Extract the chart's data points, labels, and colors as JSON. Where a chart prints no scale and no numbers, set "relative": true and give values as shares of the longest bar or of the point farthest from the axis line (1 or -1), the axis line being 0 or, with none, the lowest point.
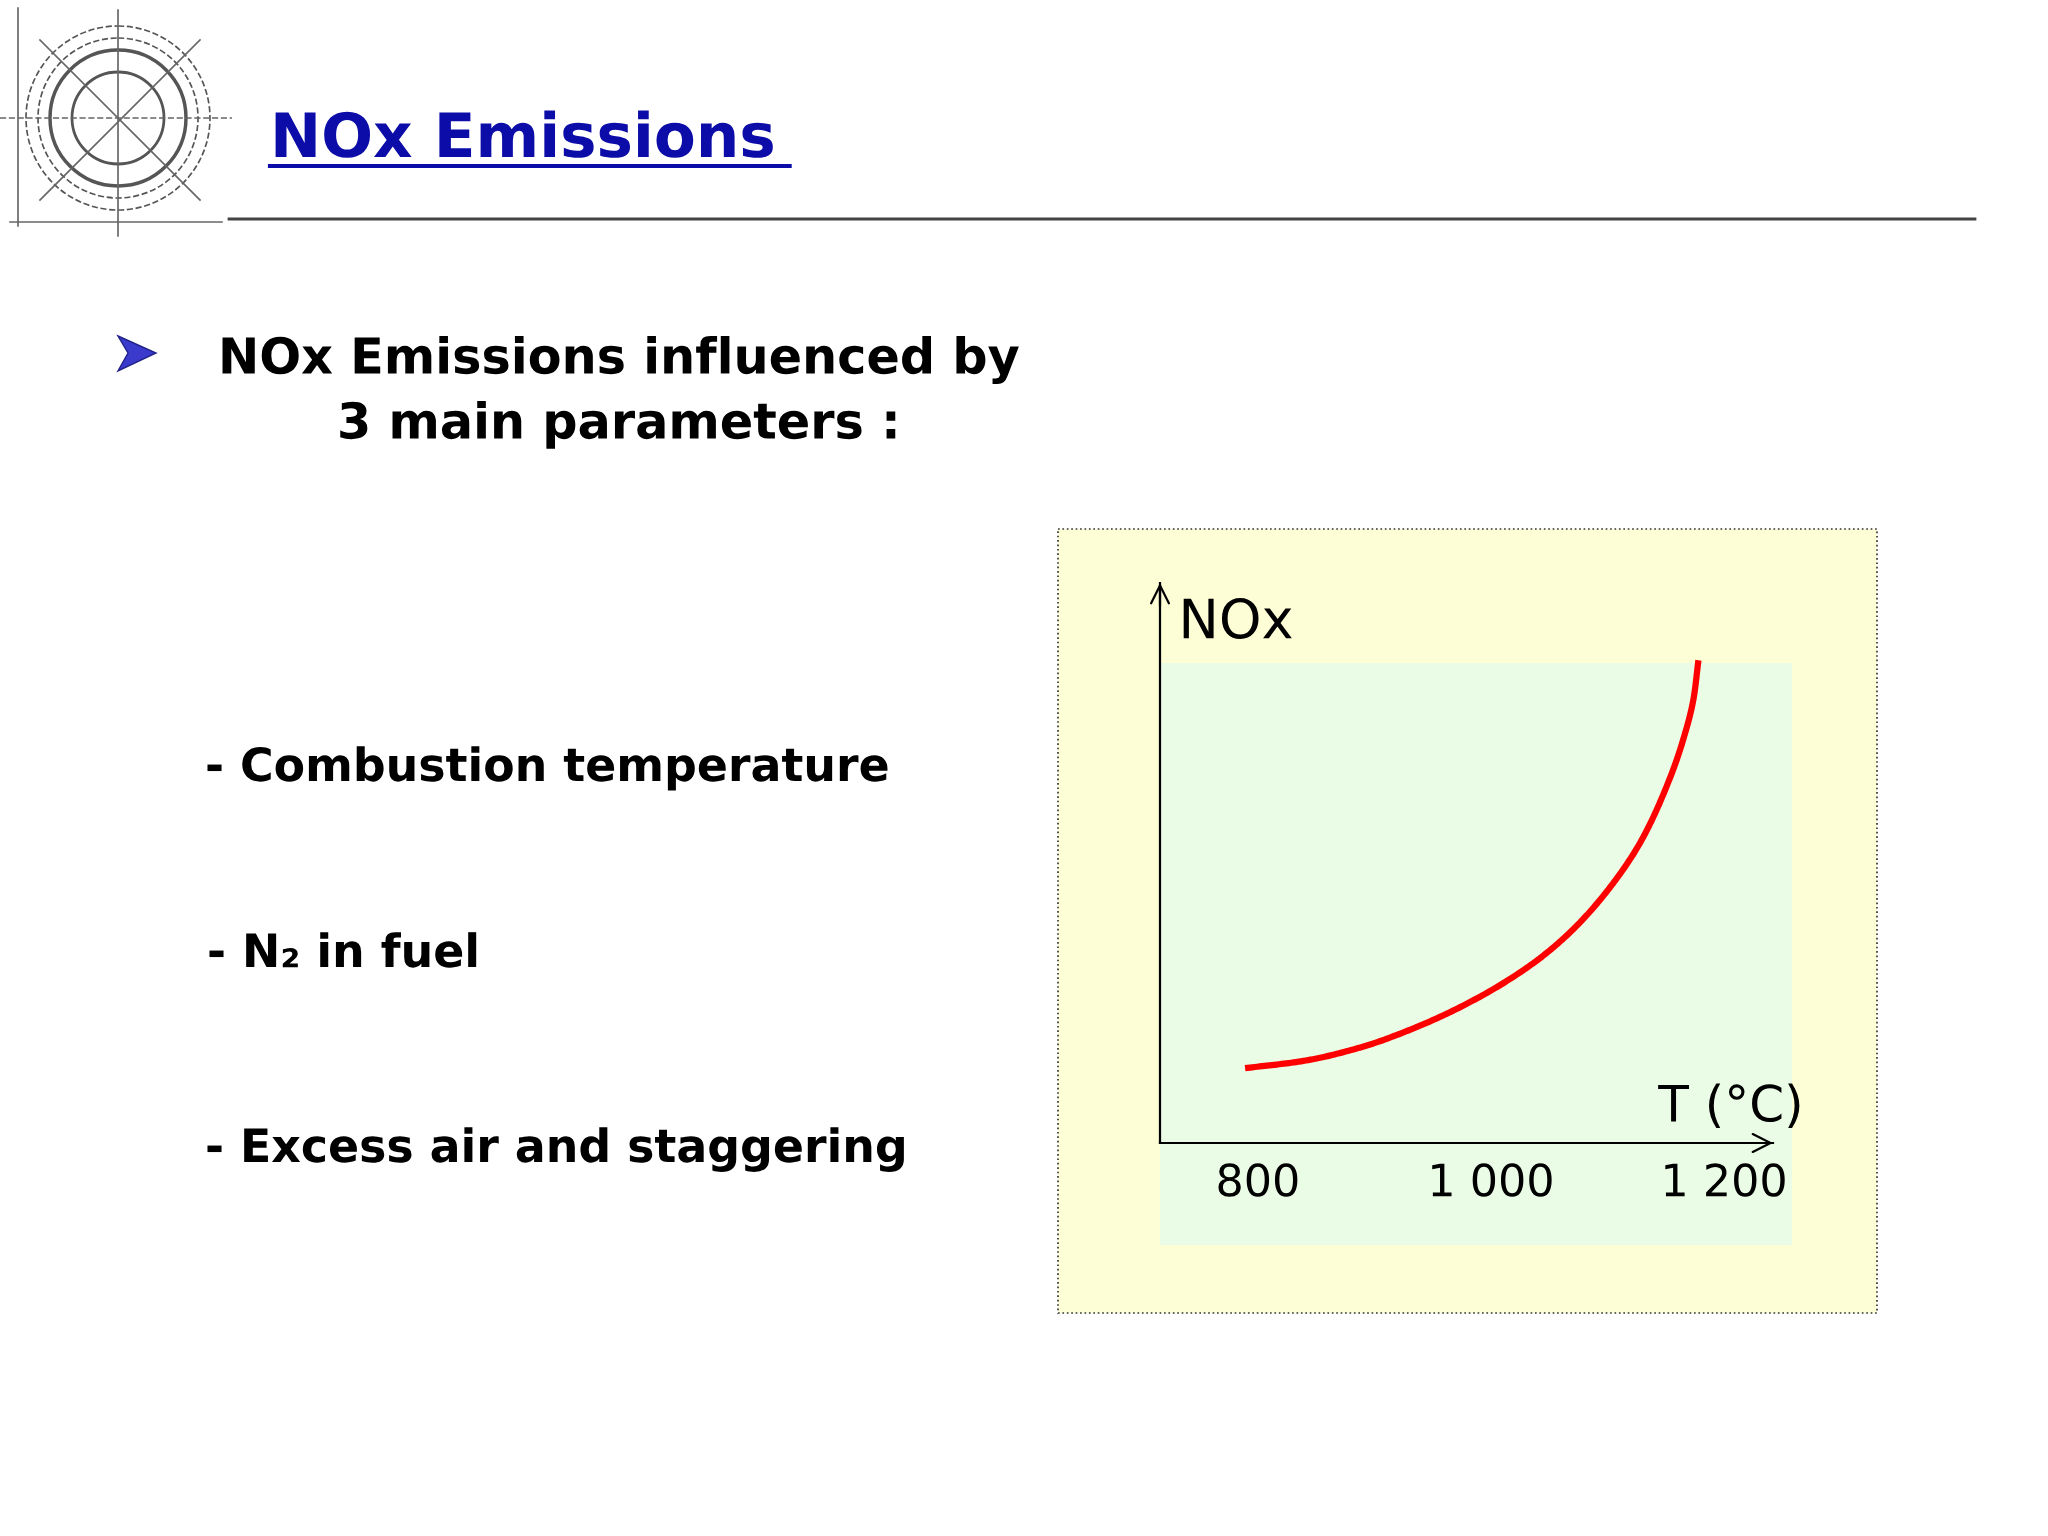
{
  "chart_data": {
    "type": "line",
    "title": "NOx Emissions",
    "subtitle": "NOx Emissions influenced by\n3 main parameters :",
    "xlabel": "T (°C)",
    "ylabel": "NOx",
    "annotations": [
      "- Combustion temperature",
      "- N₂ in fuel",
      "- Excess air and staggering"
    ],
    "relative": true,
    "x": [
      789,
      839,
      888,
      937,
      986,
      1036,
      1069,
      1101,
      1128,
      1147,
      1164,
      1174,
      1178
    ],
    "series": [
      {
        "color": "#ff0000",
        "values": [
          0.155,
          0.17,
          0.198,
          0.241,
          0.297,
          0.372,
          0.439,
          0.526,
          0.622,
          0.717,
          0.828,
          0.923,
          1
        ]
      }
    ],
    "xlim": [
      716,
      1242
    ],
    "xticks": [
      800,
      {
        "value": 1000,
        "label": "1 000"
      },
      {
        "value": 1200,
        "label": "1 200"
      }
    ]
  }
}
